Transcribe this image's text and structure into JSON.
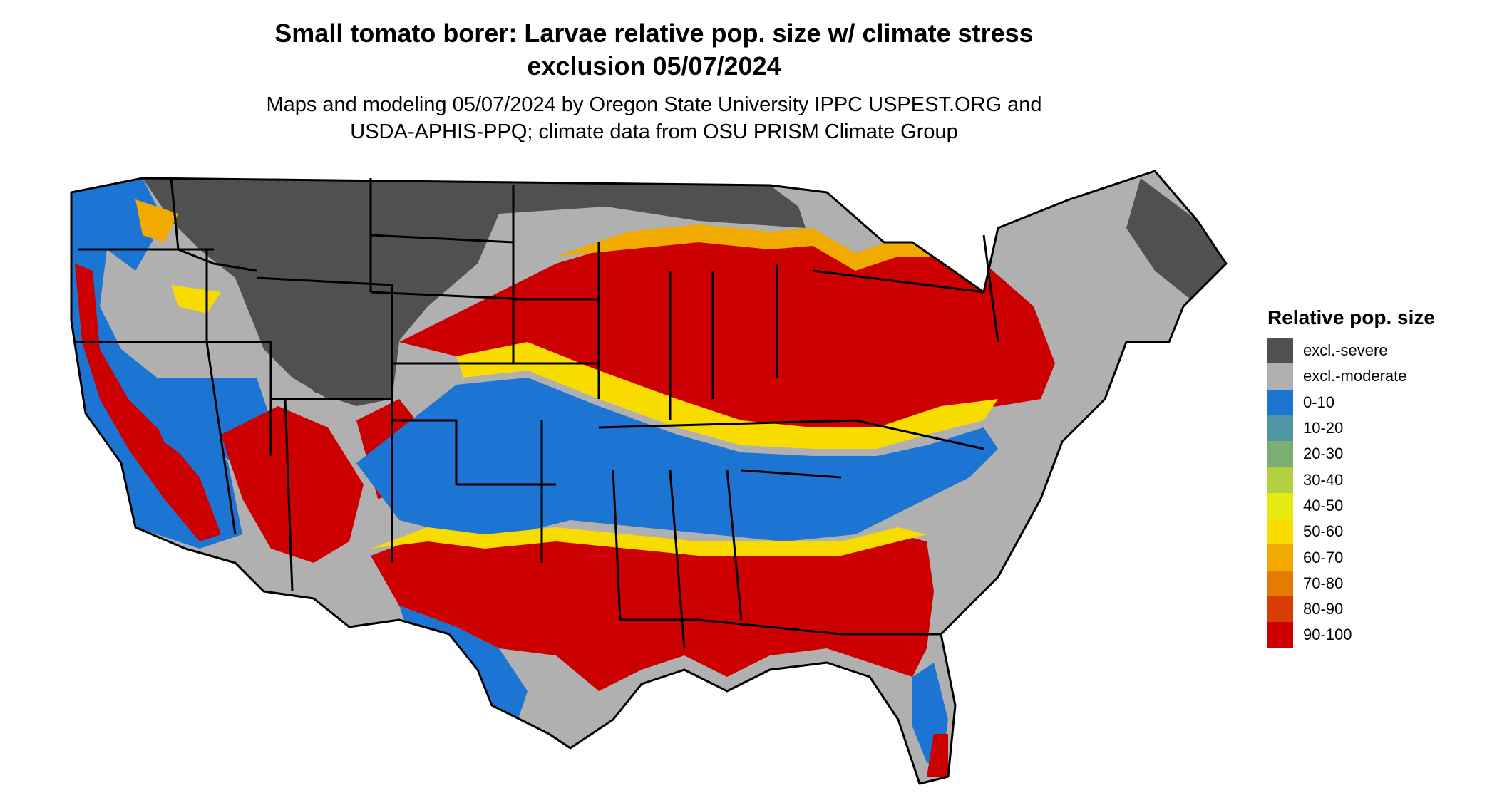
{
  "title": {
    "line1": "Small tomato borer: Larvae relative pop. size w/ climate stress",
    "line2": "exclusion 05/07/2024"
  },
  "subtitle": {
    "line1": "Maps and modeling 05/07/2024 by Oregon State University IPPC USPEST.ORG and",
    "line2": "USDA-APHIS-PPQ; climate data from OSU PRISM Climate Group"
  },
  "legend": {
    "title": "Relative pop. size",
    "items": [
      {
        "label": "excl.-severe",
        "color": "#505050"
      },
      {
        "label": "excl.-moderate",
        "color": "#b0b0b0"
      },
      {
        "label": "0-10",
        "color": "#1c74d3"
      },
      {
        "label": "10-20",
        "color": "#4f96a4"
      },
      {
        "label": "20-30",
        "color": "#7bae73"
      },
      {
        "label": "30-40",
        "color": "#b3d044"
      },
      {
        "label": "40-50",
        "color": "#e4ea12"
      },
      {
        "label": "50-60",
        "color": "#f8dc00"
      },
      {
        "label": "60-70",
        "color": "#f0aa00"
      },
      {
        "label": "70-80",
        "color": "#e47a00"
      },
      {
        "label": "80-90",
        "color": "#d83c00"
      },
      {
        "label": "90-100",
        "color": "#cc0000"
      }
    ]
  },
  "map": {
    "region": "conterminous-united-states",
    "colors": {
      "severe": "#505050",
      "moderate": "#b0b0b0",
      "low": "#1c74d3",
      "high": "#cc0000",
      "mid": "#f8dc00",
      "border": "#000000"
    }
  }
}
